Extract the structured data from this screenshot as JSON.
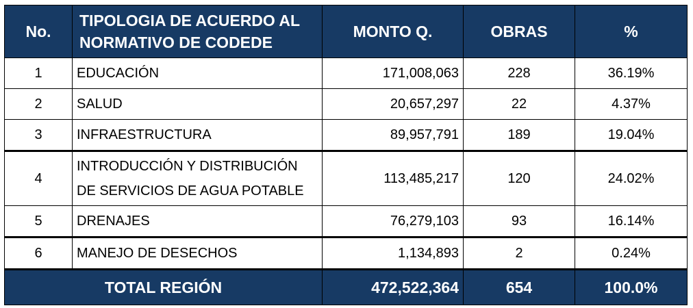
{
  "table": {
    "headers": {
      "no": "No.",
      "tipologia_line1": "TIPOLOGIA DE ACUERDO AL",
      "tipologia_line2": "NORMATIVO DE CODEDE",
      "monto": "MONTO Q.",
      "obras": "OBRAS",
      "pct": "%"
    },
    "rows": [
      {
        "no": "1",
        "tipologia_line1": "EDUCACIÓN",
        "tipologia_line2": "",
        "monto": "171,008,063",
        "obras": "228",
        "pct": "36.19%"
      },
      {
        "no": "2",
        "tipologia_line1": "SALUD",
        "tipologia_line2": "",
        "monto": "20,657,297",
        "obras": "22",
        "pct": "4.37%"
      },
      {
        "no": "3",
        "tipologia_line1": "INFRAESTRUCTURA",
        "tipologia_line2": "",
        "monto": "89,957,791",
        "obras": "189",
        "pct": "19.04%"
      },
      {
        "no": "4",
        "tipologia_line1": "INTRODUCCIÓN Y DISTRIBUCIÓN",
        "tipologia_line2": "DE SERVICIOS DE AGUA POTABLE",
        "monto": "113,485,217",
        "obras": "120",
        "pct": "24.02%"
      },
      {
        "no": "5",
        "tipologia_line1": "DRENAJES",
        "tipologia_line2": "",
        "monto": "76,279,103",
        "obras": "93",
        "pct": "16.14%"
      },
      {
        "no": "6",
        "tipologia_line1": "MANEJO DE DESECHOS",
        "tipologia_line2": "",
        "monto": "1,134,893",
        "obras": "2",
        "pct": "0.24%"
      }
    ],
    "total": {
      "label": "TOTAL REGIÓN",
      "monto": "472,522,364",
      "obras": "654",
      "pct": "100.0%"
    }
  },
  "colors": {
    "header_bg": "#173a64",
    "header_text": "#ffffff",
    "border": "#000000"
  }
}
